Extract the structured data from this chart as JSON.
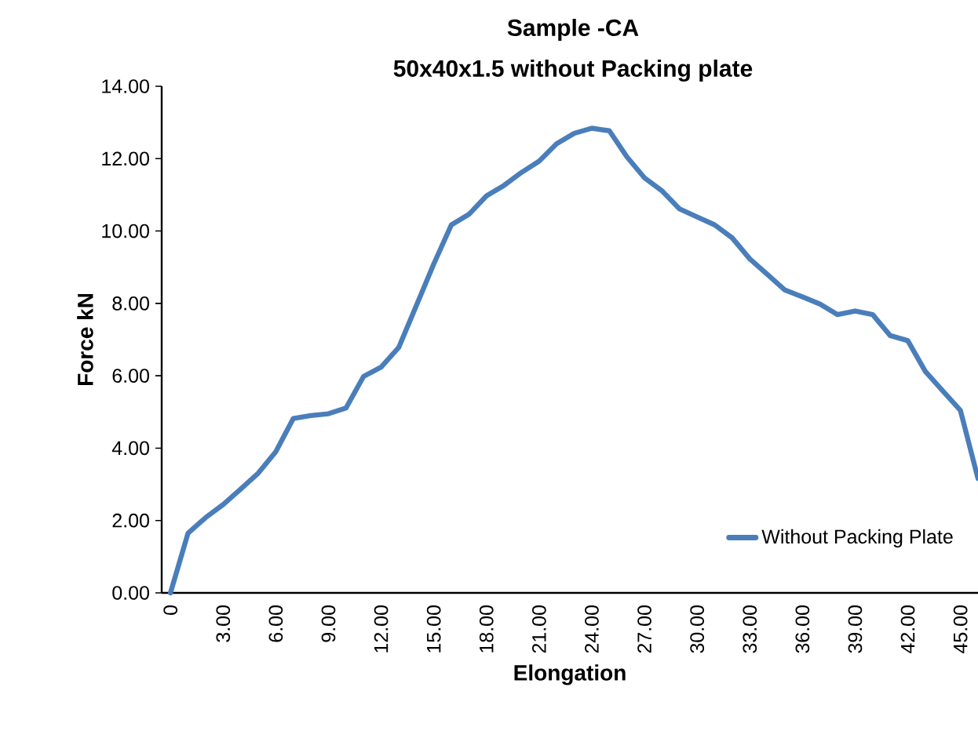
{
  "chart_data": {
    "type": "line",
    "title": "Sample -CA",
    "subtitle": "50x40x1.5 without Packing plate",
    "xlabel": "Elongation",
    "ylabel": "Force kN",
    "x": [
      0,
      1,
      2,
      3,
      4,
      5,
      6,
      7,
      8,
      9,
      10,
      11,
      12,
      13,
      14,
      15,
      16,
      17,
      18,
      19,
      20,
      21,
      22,
      23,
      24,
      25,
      26,
      27,
      28,
      29,
      30,
      31,
      32,
      33,
      34,
      35,
      36,
      37,
      38,
      39,
      40,
      41,
      42,
      43,
      44,
      45,
      46
    ],
    "series": [
      {
        "name": "Without Packing Plate",
        "color": "#4a7ebb",
        "values": [
          0,
          1.65,
          2.08,
          2.44,
          2.87,
          3.31,
          3.9,
          4.82,
          4.9,
          4.95,
          5.11,
          5.98,
          6.24,
          6.78,
          7.93,
          9.09,
          10.17,
          10.46,
          10.97,
          11.26,
          11.62,
          11.93,
          12.41,
          12.7,
          12.84,
          12.77,
          12.05,
          11.47,
          11.11,
          10.61,
          10.39,
          10.17,
          9.81,
          9.23,
          8.8,
          8.37,
          8.18,
          7.98,
          7.69,
          7.79,
          7.69,
          7.11,
          6.97,
          6.12,
          5.58,
          5.04,
          3.16
        ]
      }
    ],
    "xlim": [
      -0.5,
      46
    ],
    "ylim": [
      0,
      14
    ],
    "xticks": [
      {
        "value": 0,
        "label": "0"
      },
      {
        "value": 3,
        "label": "3.00"
      },
      {
        "value": 6,
        "label": "6.00"
      },
      {
        "value": 9,
        "label": "9.00"
      },
      {
        "value": 12,
        "label": "12.00"
      },
      {
        "value": 15,
        "label": "15.00"
      },
      {
        "value": 18,
        "label": "18.00"
      },
      {
        "value": 21,
        "label": "21.00"
      },
      {
        "value": 24,
        "label": "24.00"
      },
      {
        "value": 27,
        "label": "27.00"
      },
      {
        "value": 30,
        "label": "30.00"
      },
      {
        "value": 33,
        "label": "33.00"
      },
      {
        "value": 36,
        "label": "36.00"
      },
      {
        "value": 39,
        "label": "39.00"
      },
      {
        "value": 42,
        "label": "42.00"
      },
      {
        "value": 45,
        "label": "45.00"
      }
    ],
    "yticks": [
      {
        "value": 0,
        "label": "0.00"
      },
      {
        "value": 2,
        "label": "2.00"
      },
      {
        "value": 4,
        "label": "4.00"
      },
      {
        "value": 6,
        "label": "6.00"
      },
      {
        "value": 8,
        "label": "8.00"
      },
      {
        "value": 10,
        "label": "10.00"
      },
      {
        "value": 12,
        "label": "12.00"
      },
      {
        "value": 14,
        "label": "14.00"
      }
    ],
    "grid": false,
    "legend": "bottom right",
    "marker": "none",
    "line_style": "solid"
  }
}
